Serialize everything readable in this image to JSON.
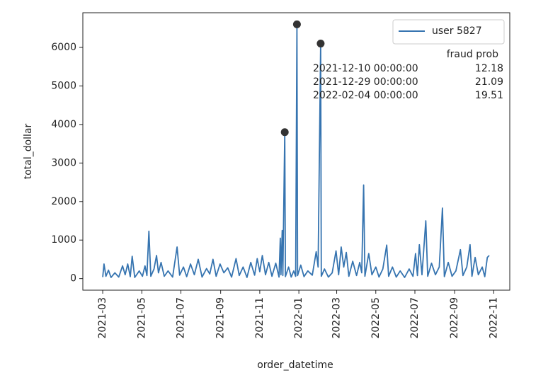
{
  "chart_data": {
    "type": "line",
    "xlabel": "order_datetime",
    "ylabel": "total_dollar",
    "xlim": [
      "2021-01-29",
      "2022-11-26"
    ],
    "ylim": [
      -300,
      6900
    ],
    "yticks": [
      0,
      1000,
      2000,
      3000,
      4000,
      5000,
      6000
    ],
    "xticks": [
      {
        "value": "2021-03-01",
        "label": "2021-03"
      },
      {
        "value": "2021-05-01",
        "label": "2021-05"
      },
      {
        "value": "2021-07-01",
        "label": "2021-07"
      },
      {
        "value": "2021-09-01",
        "label": "2021-09"
      },
      {
        "value": "2021-11-01",
        "label": "2021-11"
      },
      {
        "value": "2022-01-01",
        "label": "2022-01"
      },
      {
        "value": "2022-03-01",
        "label": "2022-03"
      },
      {
        "value": "2022-05-01",
        "label": "2022-05"
      },
      {
        "value": "2022-07-01",
        "label": "2022-07"
      },
      {
        "value": "2022-09-01",
        "label": "2022-09"
      },
      {
        "value": "2022-11-01",
        "label": "2022-11"
      }
    ],
    "grid": false,
    "legend": "upper right",
    "x": [
      "2021-03-01",
      "2021-03-03",
      "2021-03-06",
      "2021-03-10",
      "2021-03-14",
      "2021-03-20",
      "2021-03-26",
      "2021-04-01",
      "2021-04-05",
      "2021-04-09",
      "2021-04-13",
      "2021-04-16",
      "2021-04-20",
      "2021-04-27",
      "2021-05-02",
      "2021-05-06",
      "2021-05-09",
      "2021-05-12",
      "2021-05-15",
      "2021-05-20",
      "2021-05-24",
      "2021-05-27",
      "2021-05-31",
      "2021-06-05",
      "2021-06-11",
      "2021-06-18",
      "2021-06-25",
      "2021-06-29",
      "2021-07-05",
      "2021-07-10",
      "2021-07-16",
      "2021-07-22",
      "2021-07-28",
      "2021-08-03",
      "2021-08-10",
      "2021-08-15",
      "2021-08-20",
      "2021-08-25",
      "2021-08-31",
      "2021-09-06",
      "2021-09-12",
      "2021-09-18",
      "2021-09-25",
      "2021-09-30",
      "2021-10-06",
      "2021-10-12",
      "2021-10-18",
      "2021-10-24",
      "2021-10-28",
      "2021-11-01",
      "2021-11-05",
      "2021-11-10",
      "2021-11-15",
      "2021-11-20",
      "2021-11-26",
      "2021-12-01",
      "2021-12-03",
      "2021-12-04",
      "2021-12-06",
      "2021-12-07",
      "2021-12-10",
      "2021-12-11",
      "2021-12-16",
      "2021-12-20",
      "2021-12-24",
      "2021-12-27",
      "2021-12-29",
      "2021-12-30",
      "2022-01-04",
      "2022-01-09",
      "2022-01-15",
      "2022-01-22",
      "2022-01-28",
      "2022-01-31",
      "2022-02-04",
      "2022-02-05",
      "2022-02-10",
      "2022-02-16",
      "2022-02-22",
      "2022-02-28",
      "2022-03-04",
      "2022-03-08",
      "2022-03-12",
      "2022-03-16",
      "2022-03-20",
      "2022-03-26",
      "2022-04-01",
      "2022-04-06",
      "2022-04-09",
      "2022-04-12",
      "2022-04-14",
      "2022-04-20",
      "2022-04-25",
      "2022-05-01",
      "2022-05-06",
      "2022-05-12",
      "2022-05-18",
      "2022-05-21",
      "2022-05-27",
      "2022-06-02",
      "2022-06-08",
      "2022-06-15",
      "2022-06-22",
      "2022-06-28",
      "2022-07-02",
      "2022-07-05",
      "2022-07-08",
      "2022-07-12",
      "2022-07-18",
      "2022-07-21",
      "2022-07-27",
      "2022-08-02",
      "2022-08-08",
      "2022-08-13",
      "2022-08-16",
      "2022-08-22",
      "2022-08-28",
      "2022-09-03",
      "2022-09-10",
      "2022-09-14",
      "2022-09-20",
      "2022-09-25",
      "2022-09-28",
      "2022-10-03",
      "2022-10-08",
      "2022-10-14",
      "2022-10-18",
      "2022-10-22",
      "2022-10-25"
    ],
    "series": [
      {
        "name": "user 5827",
        "color": "#3674b0",
        "values": [
          40,
          380,
          60,
          220,
          30,
          150,
          40,
          330,
          100,
          380,
          50,
          580,
          30,
          200,
          60,
          330,
          80,
          1230,
          60,
          250,
          600,
          150,
          420,
          60,
          200,
          40,
          820,
          90,
          300,
          50,
          380,
          100,
          500,
          40,
          260,
          120,
          500,
          60,
          380,
          150,
          280,
          40,
          520,
          80,
          300,
          30,
          420,
          90,
          520,
          180,
          600,
          100,
          420,
          60,
          400,
          40,
          1050,
          100,
          1250,
          80,
          3800,
          50,
          300,
          40,
          200,
          60,
          6600,
          80,
          350,
          50,
          200,
          90,
          700,
          300,
          6100,
          60,
          250,
          40,
          150,
          720,
          100,
          820,
          300,
          680,
          60,
          450,
          80,
          420,
          150,
          2430,
          60,
          650,
          100,
          300,
          40,
          250,
          870,
          60,
          300,
          40,
          200,
          30,
          250,
          60,
          650,
          80,
          880,
          100,
          1500,
          60,
          400,
          100,
          300,
          1830,
          50,
          420,
          60,
          200,
          750,
          80,
          300,
          880,
          60,
          550,
          100,
          300,
          50,
          550,
          600
        ]
      }
    ],
    "fraud_points": {
      "color": "#333333",
      "x": [
        "2021-12-10",
        "2021-12-29",
        "2022-02-04"
      ],
      "values": [
        3800,
        6600,
        6100
      ]
    },
    "annotation": {
      "header": "fraud prob",
      "rows": [
        {
          "date": "2021-12-10 00:00:00",
          "prob": 12.18
        },
        {
          "date": "2021-12-29 00:00:00",
          "prob": 21.09
        },
        {
          "date": "2022-02-04 00:00:00",
          "prob": 19.51
        }
      ]
    }
  }
}
